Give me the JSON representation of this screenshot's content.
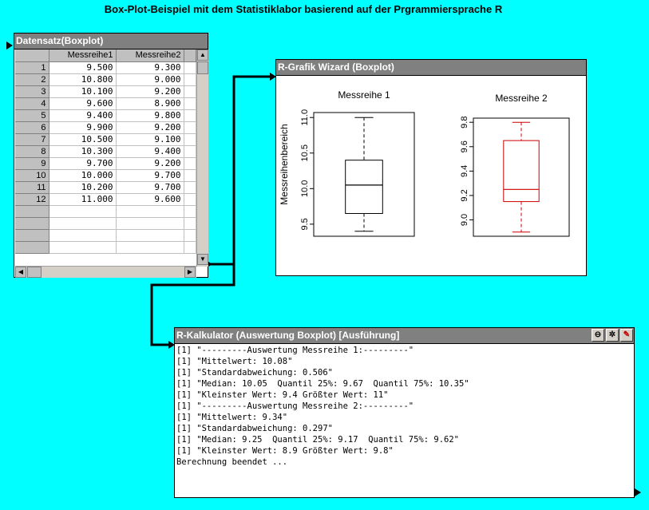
{
  "page_title": "Box-Plot-Beispiel mit dem Statistiklabor basierend auf der Prgrammiersprache R",
  "dataset": {
    "title": "Datensatz(Boxplot)",
    "columns": [
      "Messreihe1",
      "Messreihe2"
    ],
    "rows": [
      {
        "id": "1",
        "a": "9.500",
        "b": "9.300"
      },
      {
        "id": "2",
        "a": "10.800",
        "b": "9.000"
      },
      {
        "id": "3",
        "a": "10.100",
        "b": "9.200"
      },
      {
        "id": "4",
        "a": "9.600",
        "b": "8.900"
      },
      {
        "id": "5",
        "a": "9.400",
        "b": "9.800"
      },
      {
        "id": "6",
        "a": "9.900",
        "b": "9.200"
      },
      {
        "id": "7",
        "a": "10.500",
        "b": "9.100"
      },
      {
        "id": "8",
        "a": "10.300",
        "b": "9.400"
      },
      {
        "id": "9",
        "a": "9.700",
        "b": "9.200"
      },
      {
        "id": "10",
        "a": "10.000",
        "b": "9.700"
      },
      {
        "id": "11",
        "a": "10.200",
        "b": "9.700"
      },
      {
        "id": "12",
        "a": "11.000",
        "b": "9.600"
      }
    ]
  },
  "wizard": {
    "title": "R-Grafik Wizard (Boxplot)",
    "ylabel": "Messreihenbereich",
    "plots": [
      {
        "title": "Messreihe 1",
        "color": "#000000",
        "ylim": [
          9.33,
          11.07
        ],
        "ticks": [
          "9.5",
          "10.0",
          "10.5",
          "11.0"
        ],
        "tick_values": [
          9.5,
          10.0,
          10.5,
          11.0
        ],
        "min": 9.4,
        "q1": 9.65,
        "median": 10.05,
        "q3": 10.4,
        "max": 11.0
      },
      {
        "title": "Messreihe 2",
        "color": "#cc0000",
        "ylim": [
          8.866,
          9.834
        ],
        "ticks": [
          "9.0",
          "9.2",
          "9.4",
          "9.6",
          "9.8"
        ],
        "tick_values": [
          9.0,
          9.2,
          9.4,
          9.6,
          9.8
        ],
        "min": 8.9,
        "q1": 9.15,
        "median": 9.25,
        "q3": 9.65,
        "max": 9.8
      }
    ]
  },
  "calculator": {
    "title": "R-Kalkulator (Auswertung Boxplot) [Ausführung]",
    "buttons": [
      "minimize-icon",
      "gear-icon",
      "pencil-icon"
    ],
    "lines": [
      "[1] \"---------Auswertung Messreihe 1:---------\"",
      "[1] \"Mittelwert: 10.08\"",
      "[1] \"Standardabweichung: 0.506\"",
      "[1] \"Median: 10.05  Quantil 25%: 9.67  Quantil 75%: 10.35\"",
      "[1] \"Kleinster Wert: 9.4 Größter Wert: 11\"",
      "[1] \"---------Auswertung Messreihe 2:---------\"",
      "[1] \"Mittelwert: 9.34\"",
      "[1] \"Standardabweichung: 0.297\"",
      "[1] \"Median: 9.25  Quantil 25%: 9.17  Quantil 75%: 9.62\"",
      "[1] \"Kleinster Wert: 8.9 Größter Wert: 9.8\"",
      "Berechnung beendet ..."
    ]
  },
  "chart_data": {
    "type": "box",
    "ylabel": "Messreihenbereich",
    "series": [
      {
        "name": "Messreihe 1",
        "min": 9.4,
        "q1": 9.65,
        "median": 10.05,
        "q3": 10.4,
        "max": 11.0,
        "ylim": [
          9.33,
          11.07
        ]
      },
      {
        "name": "Messreihe 2",
        "min": 8.9,
        "q1": 9.15,
        "median": 9.25,
        "q3": 9.65,
        "max": 9.8,
        "ylim": [
          8.866,
          9.834
        ]
      }
    ]
  }
}
